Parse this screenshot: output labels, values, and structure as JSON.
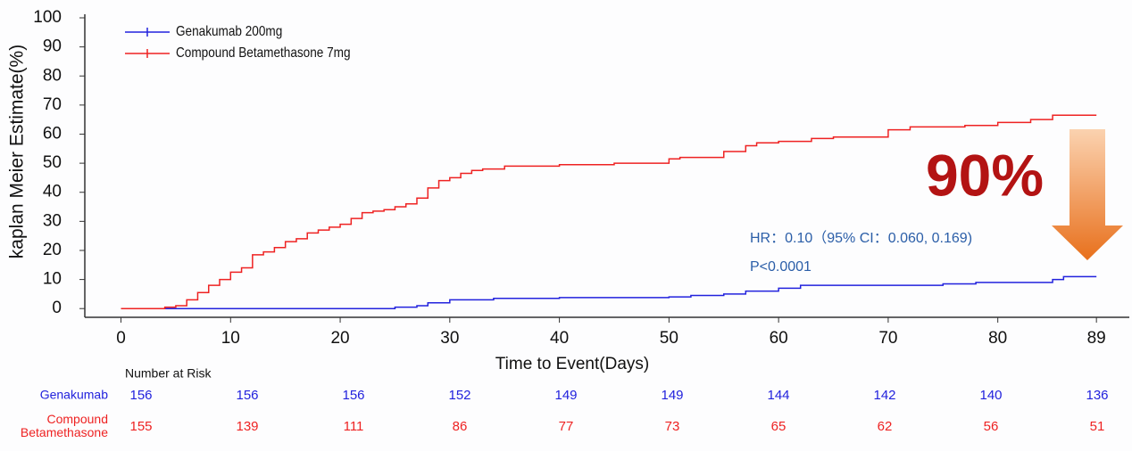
{
  "chart_data": {
    "type": "step",
    "y_label": "kaplan Meier Estimate(%)",
    "x_label": "Time to Event(Days)",
    "xlim": [
      -3.3,
      92
    ],
    "ylim": [
      -3,
      100
    ],
    "xticks": [
      0,
      10,
      20,
      30,
      40,
      50,
      60,
      70,
      80,
      89
    ],
    "yticks": [
      0,
      10,
      20,
      30,
      40,
      50,
      60,
      70,
      80,
      90,
      100
    ],
    "series": [
      {
        "name": "Genakumab 200mg",
        "color": "#2222dd",
        "x": [
          0,
          25,
          27,
          28,
          30,
          34,
          40,
          50,
          52,
          55,
          57,
          60,
          62,
          75,
          78,
          85,
          86,
          89
        ],
        "values": [
          0,
          0.5,
          1,
          2,
          3,
          3.5,
          3.8,
          4,
          4.5,
          5,
          6,
          7,
          8,
          8.5,
          9,
          10,
          11,
          11
        ]
      },
      {
        "name": "Compound Betamethasone 7mg",
        "color": "#ee2222",
        "x": [
          0,
          4,
          5,
          6,
          7,
          8,
          9,
          10,
          11,
          12,
          13,
          14,
          15,
          16,
          17,
          18,
          19,
          20,
          21,
          22,
          23,
          24,
          25,
          26,
          27,
          28,
          29,
          30,
          31,
          32,
          33,
          35,
          40,
          45,
          50,
          51,
          55,
          57,
          58,
          60,
          63,
          65,
          70,
          72,
          77,
          80,
          83,
          85,
          89
        ],
        "values": [
          0,
          0.5,
          1,
          3,
          5.5,
          8,
          10,
          12.5,
          14,
          18.5,
          19.5,
          21,
          23,
          24,
          26,
          27,
          28,
          29,
          31,
          33,
          33.5,
          34,
          35,
          36,
          38,
          41.5,
          44,
          45,
          46.5,
          47.5,
          48,
          49,
          49.5,
          50,
          51.5,
          52,
          54,
          56,
          57,
          57.5,
          58.5,
          59,
          61.5,
          62.5,
          63,
          64,
          65,
          66.5,
          66.5
        ]
      }
    ],
    "annotations": {
      "reduction": "90%",
      "hr": "HR：0.10（95% CI：0.060, 0.169)",
      "p": "P<0.0001"
    },
    "risk_table": {
      "title": "Number at Risk",
      "rows": [
        {
          "label": [
            "Genakumab"
          ],
          "color": "#2222dd",
          "values": [
            156,
            156,
            156,
            152,
            149,
            149,
            144,
            142,
            140,
            136
          ]
        },
        {
          "label": [
            "Compound",
            "Betamethasone"
          ],
          "color": "#ee2222",
          "values": [
            155,
            139,
            111,
            86,
            77,
            73,
            65,
            62,
            56,
            51
          ]
        }
      ]
    }
  }
}
